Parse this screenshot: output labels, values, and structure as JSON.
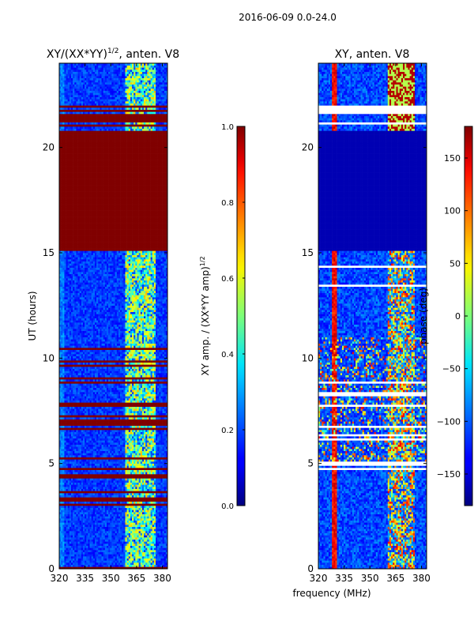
{
  "suptitle": "2016-06-09 0.0-24.0",
  "chart_data": [
    {
      "type": "heatmap",
      "title_main": "XY/(XX*YY)",
      "title_sup": "1/2",
      "title_tail": ", anten. V8",
      "xlabel": "",
      "ylabel": "UT (hours)",
      "xlim": [
        320,
        383
      ],
      "ylim": [
        0,
        24
      ],
      "xticks": [
        320,
        335,
        350,
        365,
        380
      ],
      "yticks": [
        0,
        5,
        10,
        15,
        20
      ],
      "colormap": "jet",
      "colorbar": {
        "label_main": "XY amp. / (XX*YY amp)",
        "label_sup": "1/2",
        "vmin": 0.0,
        "vmax": 1.0,
        "ticks": [
          "0.0",
          "0.2",
          "0.4",
          "0.6",
          "0.8",
          "1.0"
        ]
      },
      "description": "Normalized XY amplitude vs frequency and UT; saturated (1.0) between ~15.1 and ~20.8 h and on many narrow time rows; elevated values in 360-375 MHz band."
    },
    {
      "type": "heatmap",
      "title": "XY, anten. V8",
      "xlabel": "frequency (MHz)",
      "ylabel": "",
      "xlim": [
        320,
        383
      ],
      "ylim": [
        0,
        24
      ],
      "xticks": [
        320,
        335,
        350,
        365,
        380
      ],
      "yticks": [
        0,
        5,
        10,
        15,
        20
      ],
      "colormap": "jet",
      "colorbar": {
        "label": "phase (deg)",
        "vmin": -180,
        "vmax": 180,
        "ticks": [
          "150",
          "100",
          "50",
          "0",
          "−50",
          "−100",
          "−150"
        ]
      },
      "description": "XY phase vs frequency and UT; near -180 deg between ~15.1 and ~20.8 h; strong phase variation in 360-375 MHz band."
    }
  ]
}
